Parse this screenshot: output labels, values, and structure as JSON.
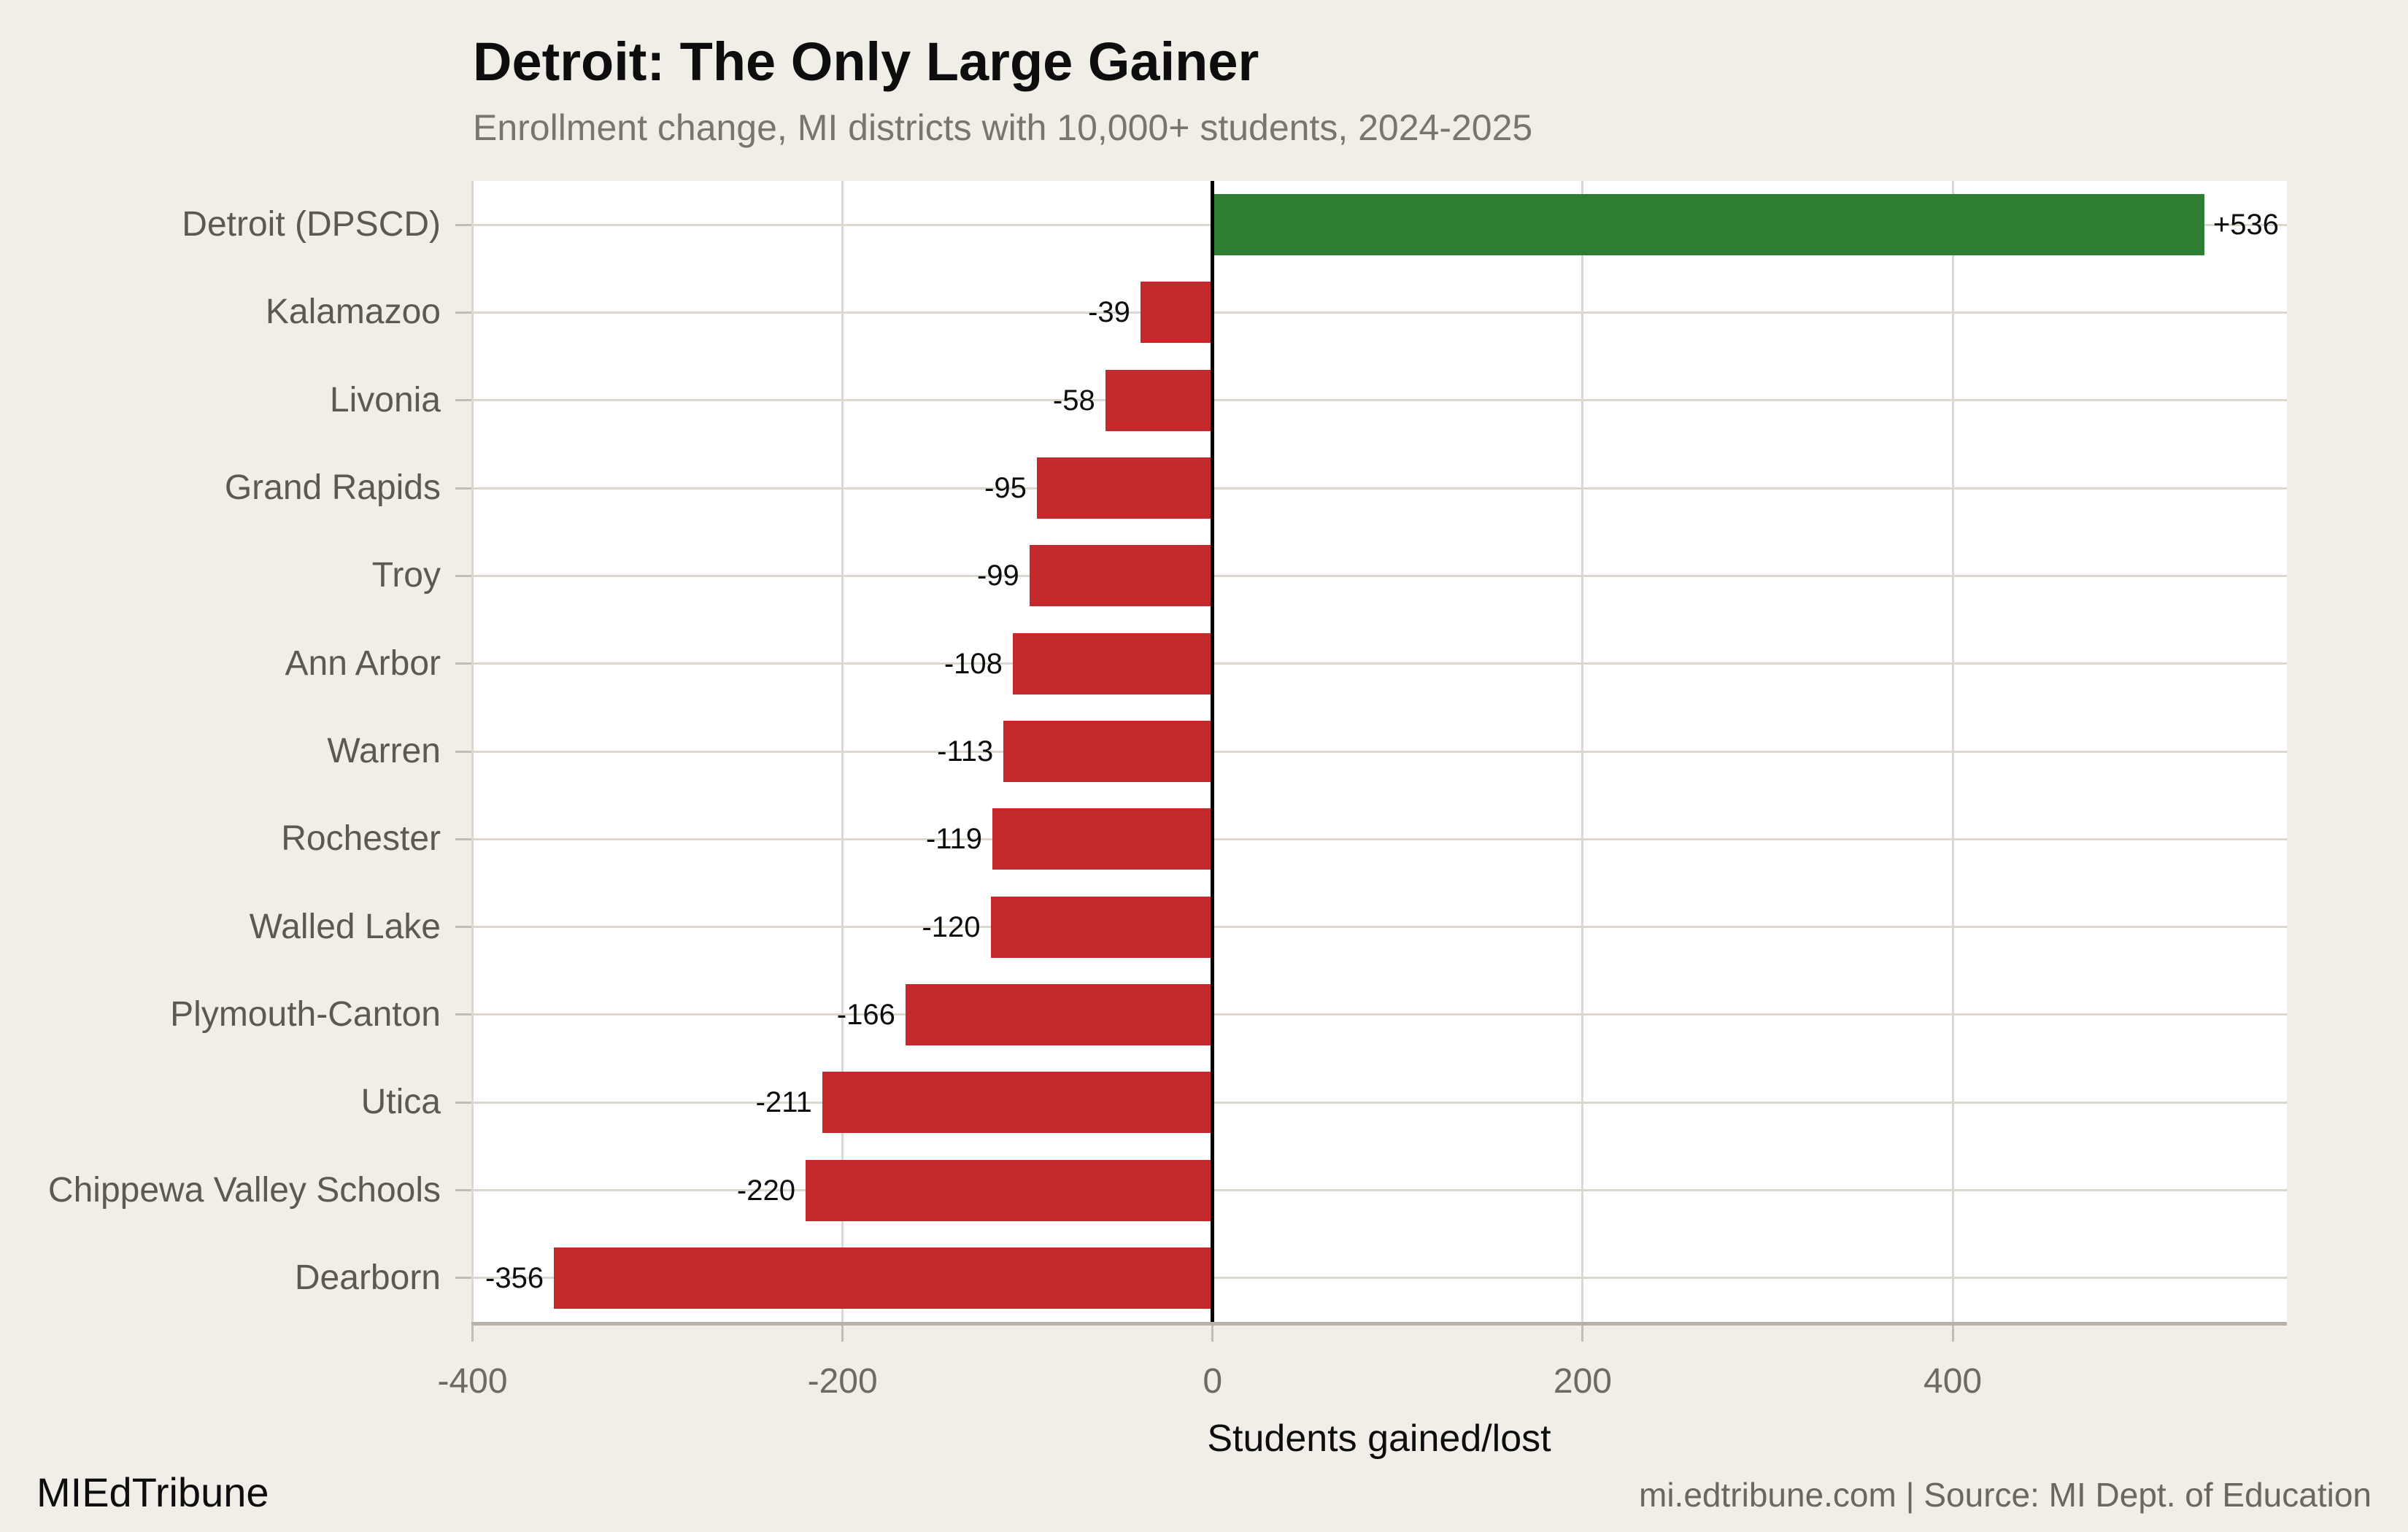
{
  "header": {
    "title": "Detroit: The Only Large Gainer",
    "subtitle": "Enrollment change, MI districts with 10,000+ students, 2024-2025"
  },
  "footer": {
    "brand": "MIEdTribune",
    "source": "mi.edtribune.com | Source: MI Dept. of Education"
  },
  "chart_data": {
    "type": "bar",
    "orientation": "horizontal",
    "title": "Detroit: The Only Large Gainer",
    "subtitle": "Enrollment change, MI districts with 10,000+ students, 2024-2025",
    "xlabel": "Students gained/lost",
    "ylabel": "",
    "categories": [
      "Detroit (DPSCD)",
      "Kalamazoo",
      "Livonia",
      "Grand Rapids",
      "Troy",
      "Ann Arbor",
      "Warren",
      "Rochester",
      "Walled Lake",
      "Plymouth-Canton",
      "Utica",
      "Chippewa Valley Schools",
      "Dearborn"
    ],
    "values": [
      536,
      -39,
      -58,
      -95,
      -99,
      -108,
      -113,
      -119,
      -120,
      -166,
      -211,
      -220,
      -356
    ],
    "value_labels": [
      "+536",
      "-39",
      "-58",
      "-95",
      "-99",
      "-108",
      "-113",
      "-119",
      "-120",
      "-166",
      "-211",
      "-220",
      "-356"
    ],
    "xlim": [
      -400.6,
      580.6
    ],
    "xticks": [
      -400,
      -200,
      0,
      200,
      400
    ],
    "xtick_labels": [
      "-400",
      "-200",
      "0",
      "200",
      "400"
    ],
    "grid": true,
    "legend": "none",
    "colors": {
      "positive_bar": "#2e7d32",
      "negative_bar": "#c42a2b",
      "background": "#f1eee8",
      "panel_background": "#ffffff",
      "gridline": "#ddd8cf",
      "axis_line": "#b7b2a9",
      "tick_mark": "#c2bdb4",
      "zero_line": "#000000",
      "category_label": "#5d5850",
      "tick_label": "#6e6962",
      "subtitle_text": "#7a756c",
      "value_label": "#0d0d0d"
    }
  }
}
